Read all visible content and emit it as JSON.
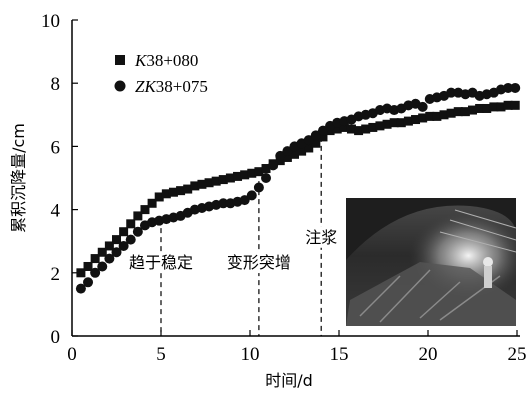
{
  "chart_data": {
    "type": "scatter",
    "xlabel": "时间/d",
    "ylabel": "累积沉降量/cm",
    "xlim": [
      0,
      25
    ],
    "ylim": [
      0,
      10
    ],
    "x_ticks": [
      "0",
      "5",
      "10",
      "15",
      "20",
      "25"
    ],
    "y_ticks": [
      "0",
      "2",
      "4",
      "6",
      "8",
      "10"
    ],
    "grid": false,
    "legend_position": "top-left",
    "series": [
      {
        "name": "K38+080",
        "name_italic_prefix": "K",
        "name_rest": "38+080",
        "marker": "square",
        "color": "#111111",
        "x": [
          0.5,
          0.9,
          1.3,
          1.7,
          2.1,
          2.5,
          2.9,
          3.3,
          3.7,
          4.1,
          4.5,
          4.9,
          5.3,
          5.7,
          6.1,
          6.5,
          6.9,
          7.3,
          7.7,
          8.1,
          8.5,
          8.9,
          9.3,
          9.7,
          10.1,
          10.5,
          10.9,
          11.3,
          11.7,
          12.1,
          12.5,
          12.9,
          13.3,
          13.7,
          14.1,
          14.5,
          14.9,
          15.3,
          15.7,
          16.1,
          16.5,
          16.9,
          17.3,
          17.7,
          18.1,
          18.5,
          18.9,
          19.3,
          19.7,
          20.1,
          20.5,
          20.9,
          21.3,
          21.7,
          22.1,
          22.5,
          22.9,
          23.3,
          23.7,
          24.1,
          24.5,
          24.9
        ],
        "y": [
          2.0,
          2.2,
          2.45,
          2.65,
          2.85,
          3.05,
          3.3,
          3.55,
          3.8,
          4.0,
          4.2,
          4.4,
          4.5,
          4.55,
          4.6,
          4.65,
          4.75,
          4.8,
          4.85,
          4.9,
          4.95,
          5.0,
          5.05,
          5.1,
          5.15,
          5.2,
          5.3,
          5.45,
          5.55,
          5.65,
          5.75,
          5.85,
          5.95,
          6.1,
          6.3,
          6.5,
          6.55,
          6.6,
          6.55,
          6.5,
          6.55,
          6.6,
          6.65,
          6.7,
          6.75,
          6.75,
          6.8,
          6.85,
          6.9,
          6.95,
          6.95,
          7.0,
          7.05,
          7.1,
          7.1,
          7.15,
          7.2,
          7.2,
          7.25,
          7.25,
          7.3,
          7.3
        ]
      },
      {
        "name": "ZK38+075",
        "name_italic_prefix": "ZK",
        "name_rest": "38+075",
        "marker": "circle",
        "color": "#111111",
        "x": [
          0.5,
          0.9,
          1.3,
          1.7,
          2.1,
          2.5,
          2.9,
          3.3,
          3.7,
          4.1,
          4.5,
          4.9,
          5.3,
          5.7,
          6.1,
          6.5,
          6.9,
          7.3,
          7.7,
          8.1,
          8.5,
          8.9,
          9.3,
          9.7,
          10.1,
          10.5,
          10.9,
          11.3,
          11.7,
          12.1,
          12.5,
          12.9,
          13.3,
          13.7,
          14.1,
          14.5,
          14.9,
          15.3,
          15.7,
          16.1,
          16.5,
          16.9,
          17.3,
          17.7,
          18.1,
          18.5,
          18.9,
          19.3,
          19.7,
          20.1,
          20.5,
          20.9,
          21.3,
          21.7,
          22.1,
          22.5,
          22.9,
          23.3,
          23.7,
          24.1,
          24.5,
          24.9
        ],
        "y": [
          1.5,
          1.7,
          2.0,
          2.2,
          2.45,
          2.65,
          2.85,
          3.05,
          3.3,
          3.5,
          3.6,
          3.65,
          3.7,
          3.75,
          3.8,
          3.9,
          4.0,
          4.05,
          4.1,
          4.15,
          4.2,
          4.2,
          4.25,
          4.3,
          4.45,
          4.7,
          5.0,
          5.4,
          5.7,
          5.85,
          6.0,
          6.1,
          6.2,
          6.35,
          6.5,
          6.65,
          6.75,
          6.8,
          6.85,
          6.95,
          7.0,
          7.05,
          7.15,
          7.2,
          7.15,
          7.2,
          7.3,
          7.35,
          7.25,
          7.5,
          7.55,
          7.6,
          7.7,
          7.7,
          7.65,
          7.7,
          7.6,
          7.65,
          7.7,
          7.8,
          7.85,
          7.85
        ]
      }
    ],
    "annotations": [
      {
        "text": "趋于稳定",
        "x": 5,
        "y": 2.15
      },
      {
        "text": "变形突增",
        "x": 10.5,
        "y": 2.15
      },
      {
        "text": "注浆",
        "x": 14,
        "y": 2.95
      }
    ],
    "vlines": [
      {
        "x": 5,
        "y_top": 3.7
      },
      {
        "x": 10.5,
        "y_top": 4.9
      },
      {
        "x": 14,
        "y_top": 6.3
      }
    ],
    "inset_photo": {
      "label": "tunnel-photo"
    }
  }
}
